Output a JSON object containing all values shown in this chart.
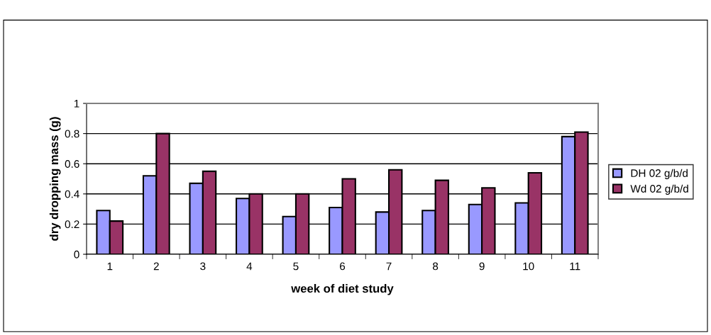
{
  "chart_data": {
    "type": "bar",
    "xlabel": "week of diet study",
    "ylabel": "dry dropping mass (g)",
    "categories": [
      "1",
      "2",
      "3",
      "4",
      "5",
      "6",
      "7",
      "8",
      "9",
      "10",
      "11"
    ],
    "series": [
      {
        "name": "DH 02 g/b/d",
        "color": "#9999ff",
        "values": [
          0.29,
          0.52,
          0.47,
          0.37,
          0.25,
          0.31,
          0.28,
          0.29,
          0.33,
          0.34,
          0.78
        ]
      },
      {
        "name": "Wd 02 g/b/d",
        "color": "#993366",
        "values": [
          0.22,
          0.8,
          0.55,
          0.4,
          0.4,
          0.5,
          0.56,
          0.49,
          0.44,
          0.54,
          0.81
        ]
      }
    ],
    "ylim": [
      0,
      1
    ],
    "yticks": [
      0,
      0.2,
      0.4,
      0.6,
      0.8,
      1
    ],
    "grid": "y",
    "legend": "right"
  }
}
